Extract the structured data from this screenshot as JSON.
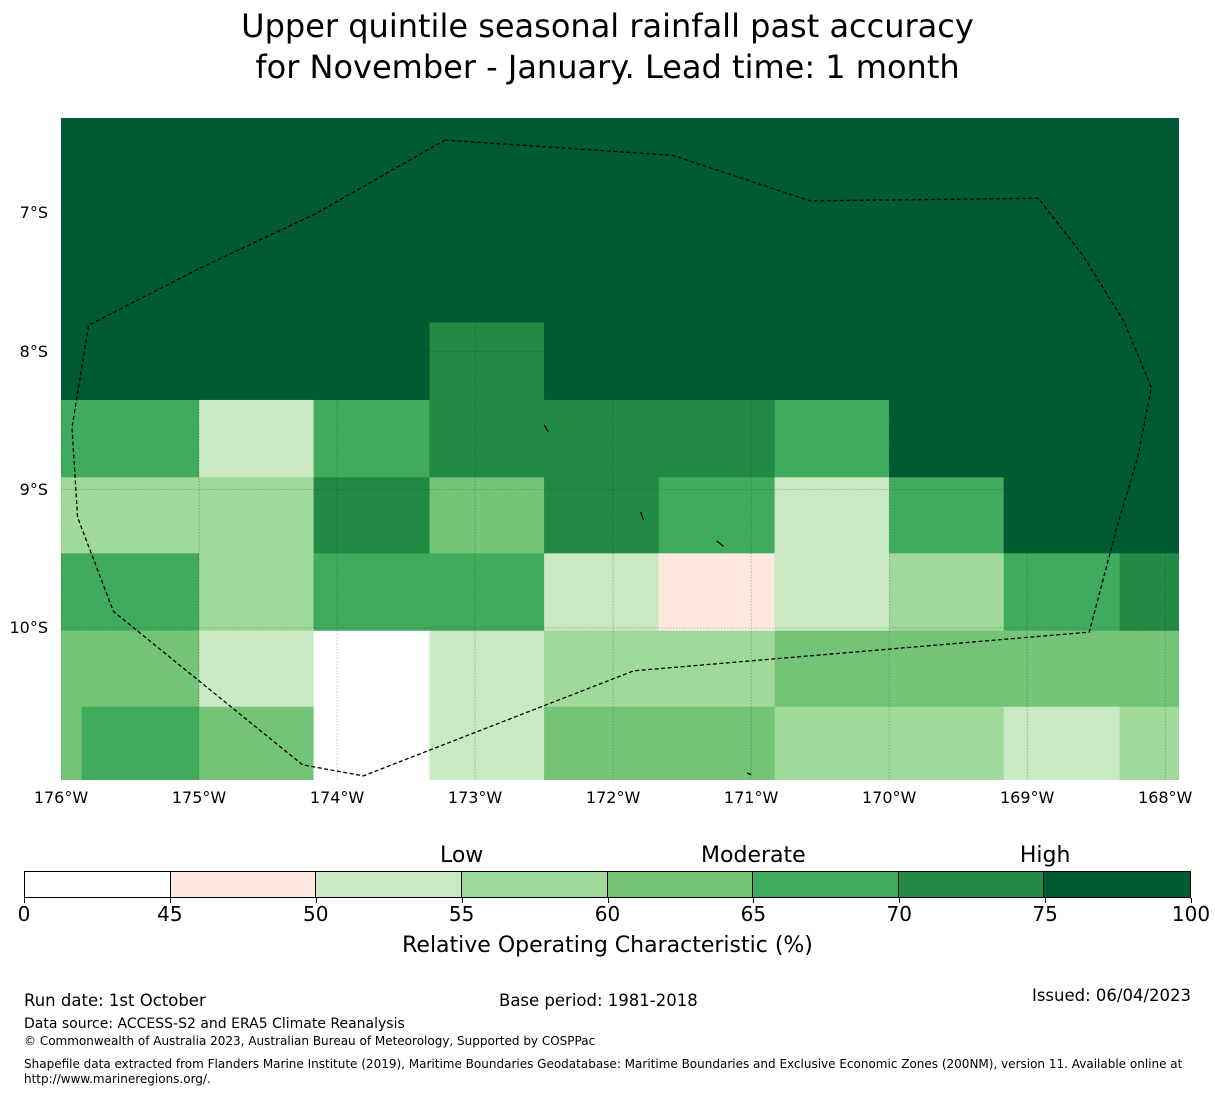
{
  "title": {
    "line1": "Upper quintile seasonal rainfall past accuracy",
    "line2": "for November - January. Lead time: 1 month"
  },
  "axes": {
    "lat_labels": [
      "7°S",
      "8°S",
      "9°S",
      "10°S"
    ],
    "lon_labels": [
      "176°W",
      "175°W",
      "174°W",
      "173°W",
      "172°W",
      "171°W",
      "170°W",
      "169°W",
      "168°W"
    ]
  },
  "chart_data": {
    "type": "heatmap",
    "title": "Upper quintile seasonal rainfall past accuracy for November - January. Lead time: 1 month",
    "lat_range": [
      -11.1,
      -6.31
    ],
    "lon_range": [
      -176.0,
      -167.9
    ],
    "lat_ticks": [
      -7,
      -8,
      -9,
      -10
    ],
    "lon_ticks": [
      -176,
      -175,
      -174,
      -173,
      -172,
      -171,
      -170,
      -169,
      -168
    ],
    "cell_lon_edges": [
      -176.0,
      -175.0,
      -174.17,
      -173.33,
      -172.5,
      -171.67,
      -170.83,
      -170.0,
      -169.17,
      -168.33,
      -167.9
    ],
    "cell_lat_edges": [
      -6.31,
      -7.25,
      -7.79,
      -8.35,
      -8.91,
      -9.46,
      -10.02,
      -10.57,
      -11.1
    ],
    "grid_classes": [
      [
        7,
        7,
        7,
        7,
        7,
        7,
        7,
        7,
        7,
        7
      ],
      [
        7,
        7,
        7,
        7,
        7,
        7,
        7,
        7,
        7,
        7
      ],
      [
        7,
        7,
        7,
        6,
        7,
        7,
        7,
        7,
        7,
        7
      ],
      [
        5,
        2,
        5,
        6,
        6,
        6,
        5,
        7,
        7,
        7
      ],
      [
        3,
        3,
        6,
        4,
        6,
        5,
        2,
        5,
        7,
        7
      ],
      [
        5,
        3,
        5,
        5,
        2,
        1,
        2,
        3,
        5,
        6
      ],
      [
        4,
        2,
        0,
        2,
        3,
        3,
        4,
        4,
        4,
        4
      ],
      [
        5,
        4,
        0,
        2,
        4,
        4,
        3,
        3,
        2,
        3
      ]
    ],
    "extra_cell": {
      "lon": [
        -176.0,
        -175.85
      ],
      "lat": [
        -10.57,
        -11.1
      ],
      "class": 4
    },
    "boundary": [
      [
        -173.22,
        -6.47
      ],
      [
        -171.57,
        -6.58
      ],
      [
        -170.57,
        -6.91
      ],
      [
        -168.92,
        -6.89
      ],
      [
        -168.6,
        -7.3
      ],
      [
        -168.3,
        -7.78
      ],
      [
        -168.1,
        -8.26
      ],
      [
        -168.2,
        -8.77
      ],
      [
        -168.35,
        -9.27
      ],
      [
        -168.55,
        -10.03
      ],
      [
        -171.85,
        -10.31
      ],
      [
        -173.81,
        -11.07
      ],
      [
        -174.25,
        -10.99
      ],
      [
        -175.62,
        -9.88
      ],
      [
        -175.88,
        -9.2
      ],
      [
        -175.92,
        -8.55
      ],
      [
        -175.8,
        -7.81
      ],
      [
        -175.0,
        -7.4
      ],
      [
        -174.15,
        -7.0
      ],
      [
        -173.22,
        -6.47
      ]
    ],
    "islands": [
      [
        [
          -172.5,
          -8.53
        ],
        [
          -172.47,
          -8.58
        ]
      ],
      [
        [
          -171.8,
          -9.16
        ],
        [
          -171.78,
          -9.22
        ]
      ],
      [
        [
          -171.25,
          -9.37
        ],
        [
          -171.2,
          -9.41
        ]
      ],
      [
        [
          -171.03,
          -11.05
        ],
        [
          -171.0,
          -11.06
        ]
      ]
    ],
    "colors": {
      "levels": [
        0,
        45,
        50,
        55,
        60,
        65,
        70,
        75,
        100
      ],
      "fills": [
        "#ffffff",
        "#fee9e0",
        "#c8e9c1",
        "#a1d99b",
        "#73c476",
        "#40aa5d",
        "#228a44",
        "#005a32"
      ],
      "grid_line": "#2a2a2a",
      "boundary_line": "#000000"
    }
  },
  "legend": {
    "categories": [
      {
        "label": "Low",
        "value": 55
      },
      {
        "label": "Moderate",
        "value": 65
      },
      {
        "label": "High",
        "value": 75
      }
    ],
    "ticks": [
      "0",
      "45",
      "50",
      "55",
      "60",
      "65",
      "70",
      "75",
      "100"
    ],
    "title": "Relative Operating Characteristic (%)"
  },
  "footer": {
    "run_date": "Run date: 1st October",
    "base_period": "Base period: 1981-2018",
    "issued": "Issued: 06/04/2023",
    "data_source": "Data source: ACCESS-S2 and ERA5 Climate Reanalysis",
    "copyright": "© Commonwealth of Australia 2023, Australian Bureau of Meteorology, Supported by COSPPac",
    "shapefile": "Shapefile data extracted from Flanders Marine Institute (2019), Maritime Boundaries Geodatabase: Maritime Boundaries and Exclusive Economic Zones (200NM), version 11. Available online at http://www.marineregions.org/."
  }
}
